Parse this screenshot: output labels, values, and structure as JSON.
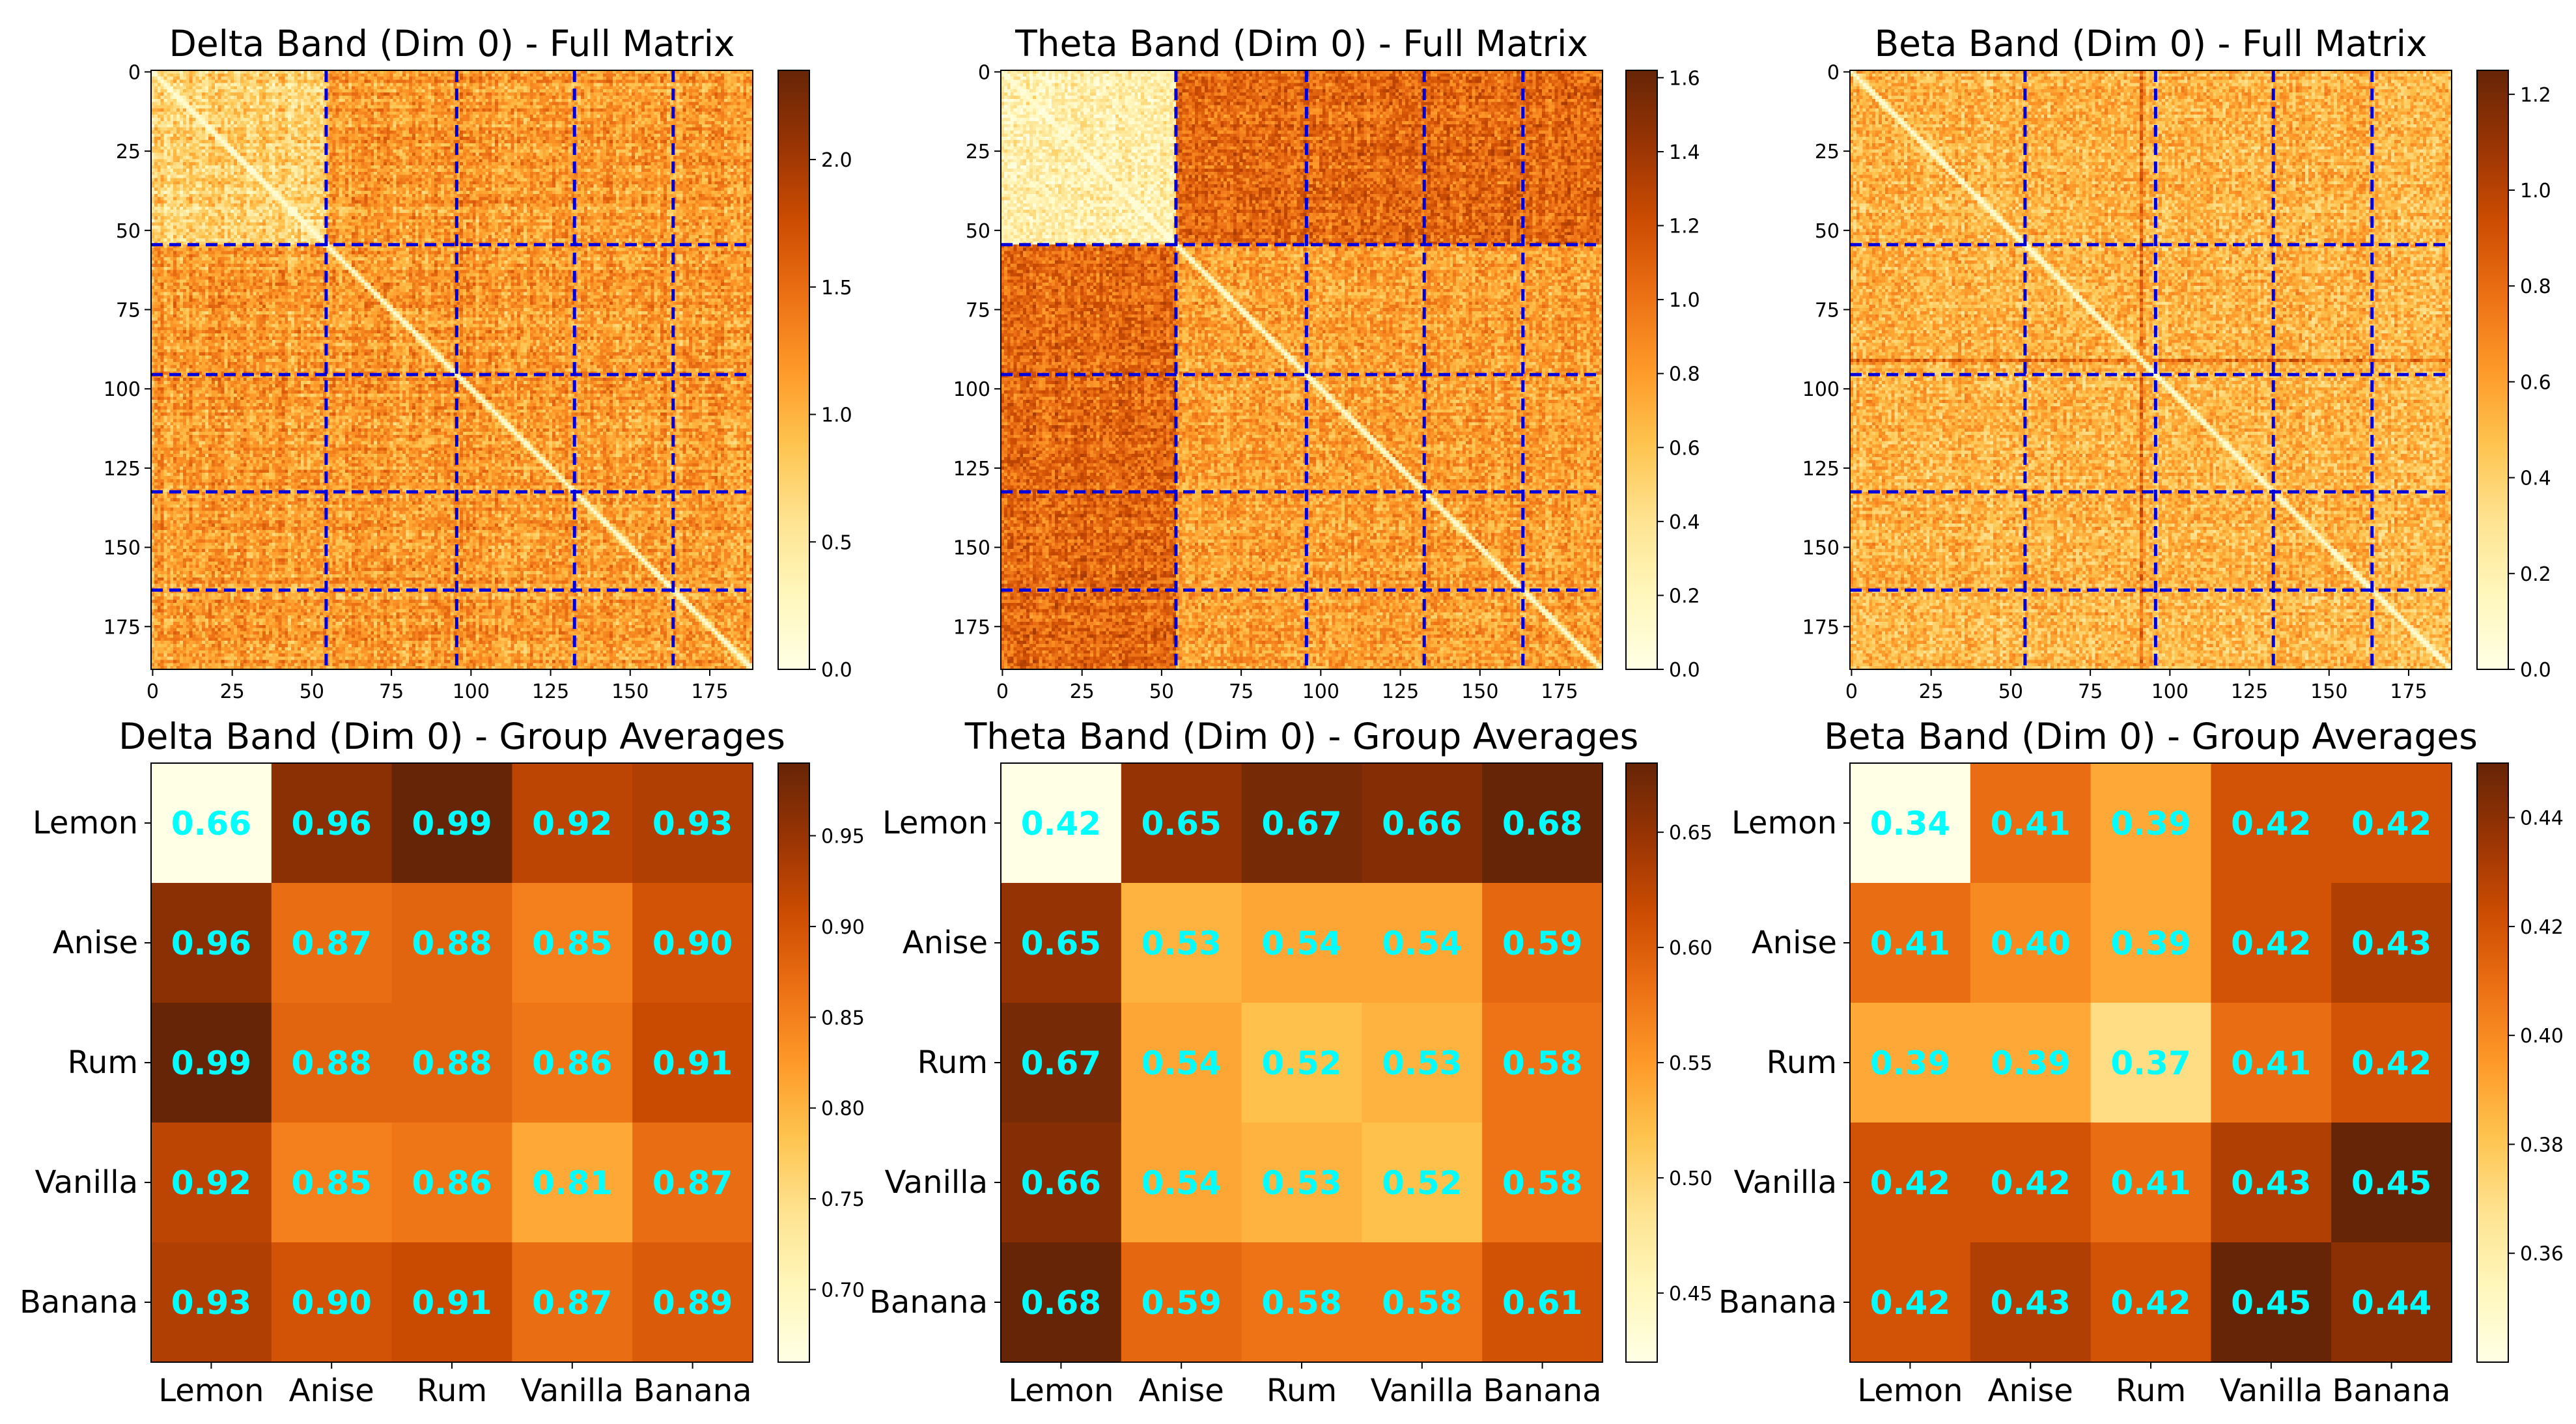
{
  "chart_data": [
    {
      "type": "heatmap",
      "title": "Delta Band (Dim 0) - Full Matrix",
      "size": 189,
      "group_boundaries": [
        55,
        96,
        133,
        164
      ],
      "group_sizes": [
        55,
        41,
        37,
        31,
        25
      ],
      "xticks": [
        "0",
        "25",
        "50",
        "75",
        "100",
        "125",
        "150",
        "175"
      ],
      "yticks": [
        "0",
        "25",
        "50",
        "75",
        "100",
        "125",
        "150",
        "175"
      ],
      "colorbar_range": [
        0,
        2.35
      ],
      "colorbar_ticks": [
        "0.0",
        "0.5",
        "1.0",
        "1.5",
        "2.0"
      ],
      "colormap": "YlOrBr",
      "group_line_color": "#0000dd"
    },
    {
      "type": "heatmap",
      "title": "Theta Band (Dim 0) - Full Matrix",
      "size": 189,
      "group_boundaries": [
        55,
        96,
        133,
        164
      ],
      "group_sizes": [
        55,
        41,
        37,
        31,
        25
      ],
      "xticks": [
        "0",
        "25",
        "50",
        "75",
        "100",
        "125",
        "150",
        "175"
      ],
      "yticks": [
        "0",
        "25",
        "50",
        "75",
        "100",
        "125",
        "150",
        "175"
      ],
      "colorbar_range": [
        0,
        1.62
      ],
      "colorbar_ticks": [
        "0.0",
        "0.2",
        "0.4",
        "0.6",
        "0.8",
        "1.0",
        "1.2",
        "1.4",
        "1.6"
      ],
      "colormap": "YlOrBr",
      "group_line_color": "#0000dd"
    },
    {
      "type": "heatmap",
      "title": "Beta Band (Dim 0) - Full Matrix",
      "size": 189,
      "group_boundaries": [
        55,
        96,
        133,
        164
      ],
      "group_sizes": [
        55,
        41,
        37,
        31,
        25
      ],
      "xticks": [
        "0",
        "25",
        "50",
        "75",
        "100",
        "125",
        "150",
        "175"
      ],
      "yticks": [
        "0",
        "25",
        "50",
        "75",
        "100",
        "125",
        "150",
        "175"
      ],
      "colorbar_range": [
        0,
        1.25
      ],
      "colorbar_ticks": [
        "0.0",
        "0.2",
        "0.4",
        "0.6",
        "0.8",
        "1.0",
        "1.2"
      ],
      "colormap": "YlOrBr",
      "group_line_color": "#0000dd"
    },
    {
      "type": "heatmap",
      "title": "Delta Band (Dim 0) - Group Averages",
      "categories": [
        "Lemon",
        "Anise",
        "Rum",
        "Vanilla",
        "Banana"
      ],
      "values": [
        [
          0.66,
          0.96,
          0.99,
          0.92,
          0.93
        ],
        [
          0.96,
          0.87,
          0.88,
          0.85,
          0.9
        ],
        [
          0.99,
          0.88,
          0.88,
          0.86,
          0.91
        ],
        [
          0.92,
          0.85,
          0.86,
          0.81,
          0.87
        ],
        [
          0.93,
          0.9,
          0.91,
          0.87,
          0.89
        ]
      ],
      "colorbar_range": [
        0.66,
        0.99
      ],
      "colorbar_ticks": [
        "0.70",
        "0.75",
        "0.80",
        "0.85",
        "0.90",
        "0.95"
      ],
      "colormap": "YlOrBr",
      "annotation_color": "#00ffff"
    },
    {
      "type": "heatmap",
      "title": "Theta Band (Dim 0) - Group Averages",
      "categories": [
        "Lemon",
        "Anise",
        "Rum",
        "Vanilla",
        "Banana"
      ],
      "values": [
        [
          0.42,
          0.65,
          0.67,
          0.66,
          0.68
        ],
        [
          0.65,
          0.53,
          0.54,
          0.54,
          0.59
        ],
        [
          0.67,
          0.54,
          0.52,
          0.53,
          0.58
        ],
        [
          0.66,
          0.54,
          0.53,
          0.52,
          0.58
        ],
        [
          0.68,
          0.59,
          0.58,
          0.58,
          0.61
        ]
      ],
      "colorbar_range": [
        0.42,
        0.68
      ],
      "colorbar_ticks": [
        "0.45",
        "0.50",
        "0.55",
        "0.60",
        "0.65"
      ],
      "colormap": "YlOrBr",
      "annotation_color": "#00ffff"
    },
    {
      "type": "heatmap",
      "title": "Beta Band (Dim 0) - Group Averages",
      "categories": [
        "Lemon",
        "Anise",
        "Rum",
        "Vanilla",
        "Banana"
      ],
      "values": [
        [
          0.34,
          0.41,
          0.39,
          0.42,
          0.42
        ],
        [
          0.41,
          0.4,
          0.39,
          0.42,
          0.43
        ],
        [
          0.39,
          0.39,
          0.37,
          0.41,
          0.42
        ],
        [
          0.42,
          0.42,
          0.41,
          0.43,
          0.45
        ],
        [
          0.42,
          0.43,
          0.42,
          0.45,
          0.44
        ]
      ],
      "colorbar_range": [
        0.34,
        0.45
      ],
      "colorbar_ticks": [
        "0.36",
        "0.38",
        "0.40",
        "0.42",
        "0.44"
      ],
      "colormap": "YlOrBr",
      "annotation_color": "#00ffff"
    }
  ]
}
